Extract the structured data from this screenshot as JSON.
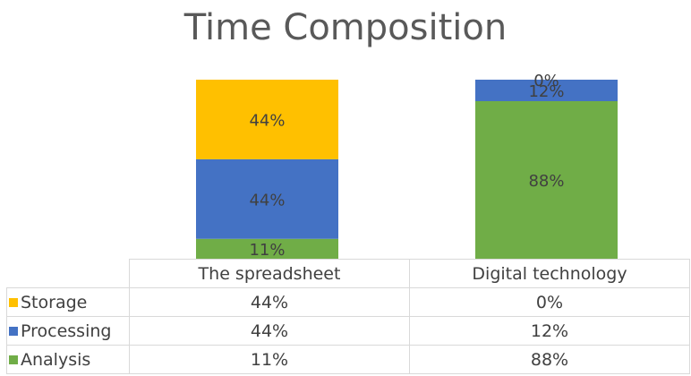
{
  "chart_data": {
    "type": "bar",
    "stacked": true,
    "title": "Time Composition",
    "categories": [
      "The spreadsheet",
      "Digital technology"
    ],
    "series": [
      {
        "name": "Storage",
        "values": [
          44,
          0
        ],
        "labels": [
          "44%",
          "0%"
        ],
        "color": "#FFC000"
      },
      {
        "name": "Processing",
        "values": [
          44,
          12
        ],
        "labels": [
          "44%",
          "12%"
        ],
        "color": "#4472C4"
      },
      {
        "name": "Analysis",
        "values": [
          11,
          88
        ],
        "labels": [
          "11%",
          "88%"
        ],
        "color": "#70AD47"
      }
    ],
    "ylim": [
      0,
      100
    ],
    "legend": "data-table",
    "grid": false
  }
}
